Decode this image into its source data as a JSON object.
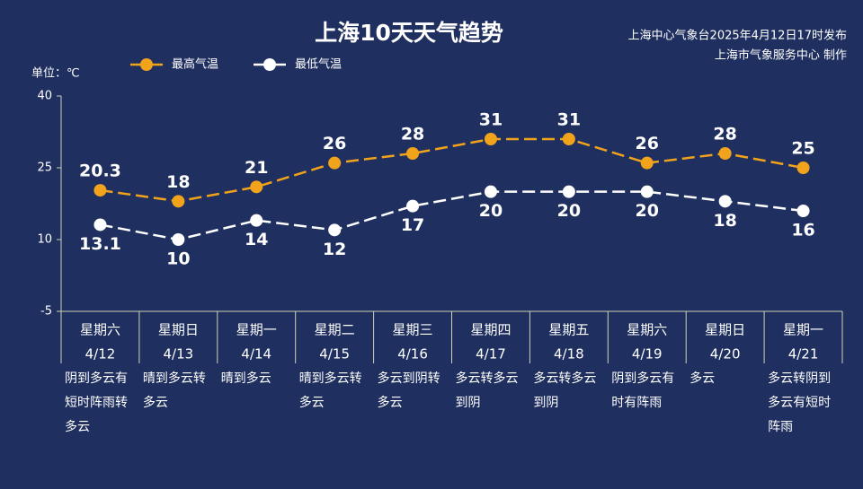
{
  "chart_data": {
    "type": "line",
    "title": "上海10天天气趋势",
    "source": "上海中心气象台2025年4月12日17时发布",
    "producer": "上海市气象服务中心 制作",
    "unit_label": "单位：℃",
    "categories": [
      "4/12",
      "4/13",
      "4/14",
      "4/15",
      "4/16",
      "4/17",
      "4/18",
      "4/19",
      "4/20",
      "4/21"
    ],
    "weekdays": [
      "星期六",
      "星期日",
      "星期一",
      "星期二",
      "星期三",
      "星期四",
      "星期五",
      "星期六",
      "星期日",
      "星期一"
    ],
    "weather": [
      "阴到多云有短时阵雨转多云",
      "晴到多云转多云",
      "晴到多云",
      "晴到多云转多云",
      "多云到阴转多云",
      "多云转多云到阴",
      "多云转多云到阴",
      "阴到多云有时有阵雨",
      "多云",
      "多云转阴到多云有短时阵雨"
    ],
    "series": [
      {
        "name": "最高气温",
        "color": "#f2a31c",
        "values": [
          20.3,
          18,
          21,
          26,
          28,
          31,
          31,
          26,
          28,
          25
        ]
      },
      {
        "name": "最低气温",
        "color": "#ffffff",
        "values": [
          13.1,
          10,
          14,
          12,
          17,
          20,
          20,
          20,
          18,
          16
        ]
      }
    ],
    "ylim": [
      -5,
      40
    ],
    "yticks": [
      -5,
      10,
      25,
      40
    ],
    "grid": false
  }
}
